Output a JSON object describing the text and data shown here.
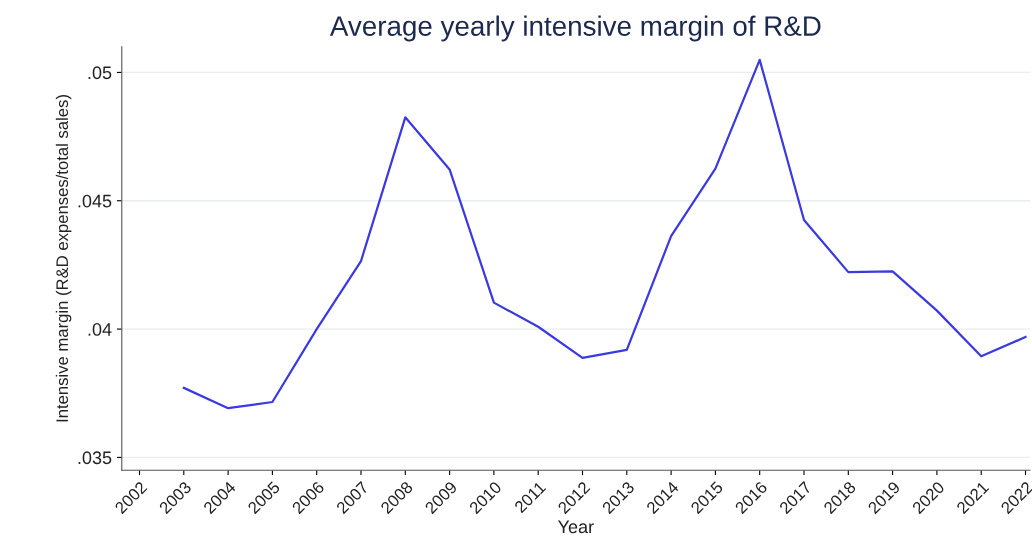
{
  "chart_data": {
    "type": "line",
    "title": "Average yearly intensive margin of R&D",
    "xlabel": "Year",
    "ylabel": "Intensive margin (R&D expenses/total sales)",
    "x": [
      2003,
      2004,
      2005,
      2006,
      2007,
      2008,
      2009,
      2010,
      2011,
      2012,
      2013,
      2014,
      2015,
      2016,
      2017,
      2018,
      2019,
      2020,
      2021,
      2022
    ],
    "series": [
      {
        "color": "#3a3ae0",
        "values": [
          0.03771,
          0.03692,
          0.03716,
          0.04,
          0.04265,
          0.04825,
          0.04622,
          0.04103,
          0.04009,
          0.03888,
          0.03919,
          0.04362,
          0.04625,
          0.05049,
          0.04425,
          0.04222,
          0.04225,
          0.04072,
          0.03894,
          0.03969
        ]
      }
    ],
    "xlim": [
      2001.6,
      2022.1
    ],
    "xticks": [
      2002,
      2003,
      2004,
      2005,
      2006,
      2007,
      2008,
      2009,
      2010,
      2011,
      2012,
      2013,
      2014,
      2015,
      2016,
      2017,
      2018,
      2019,
      2020,
      2021,
      2022
    ],
    "ylim": [
      0.0345,
      0.051
    ],
    "yticks": [
      {
        "value": 0.035,
        "label": ".035"
      },
      {
        "value": 0.04,
        "label": ".04"
      },
      {
        "value": 0.045,
        "label": ".045"
      },
      {
        "value": 0.05,
        "label": ".05"
      }
    ],
    "grid": "y",
    "line_style": "solid",
    "marker": "none"
  }
}
